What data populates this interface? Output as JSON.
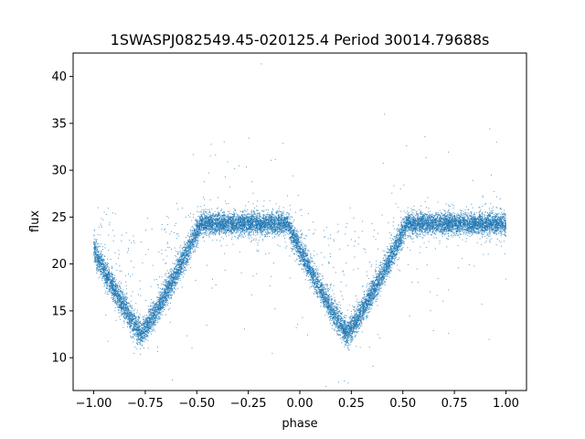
{
  "chart_data": {
    "type": "scatter",
    "title": "1SWASPJ082549.45-020125.4 Period 30014.79688s",
    "xlabel": "phase",
    "ylabel": "flux",
    "xlim": [
      -1.1,
      1.1
    ],
    "ylim": [
      6.5,
      42.5
    ],
    "xticks": [
      -1.0,
      -0.75,
      -0.5,
      -0.25,
      0.0,
      0.25,
      0.5,
      0.75,
      1.0
    ],
    "xtick_labels": [
      "−1.00",
      "−0.75",
      "−0.50",
      "−0.25",
      "0.00",
      "0.25",
      "0.50",
      "0.75",
      "1.00"
    ],
    "yticks": [
      10,
      15,
      20,
      25,
      30,
      35,
      40
    ],
    "ytick_labels": [
      "10",
      "15",
      "20",
      "25",
      "30",
      "35",
      "40"
    ],
    "grid": false,
    "legend": "none",
    "series": [
      {
        "color": "#1f77b4",
        "baseline_flux": 24.3,
        "eclipse_minimum_flux": 12.6,
        "eclipse_centers": [
          -0.77,
          0.23
        ],
        "eclipse_width_phase": 0.58,
        "x_range": [
          -1.0,
          1.0
        ],
        "n_points": 16000
      }
    ]
  }
}
